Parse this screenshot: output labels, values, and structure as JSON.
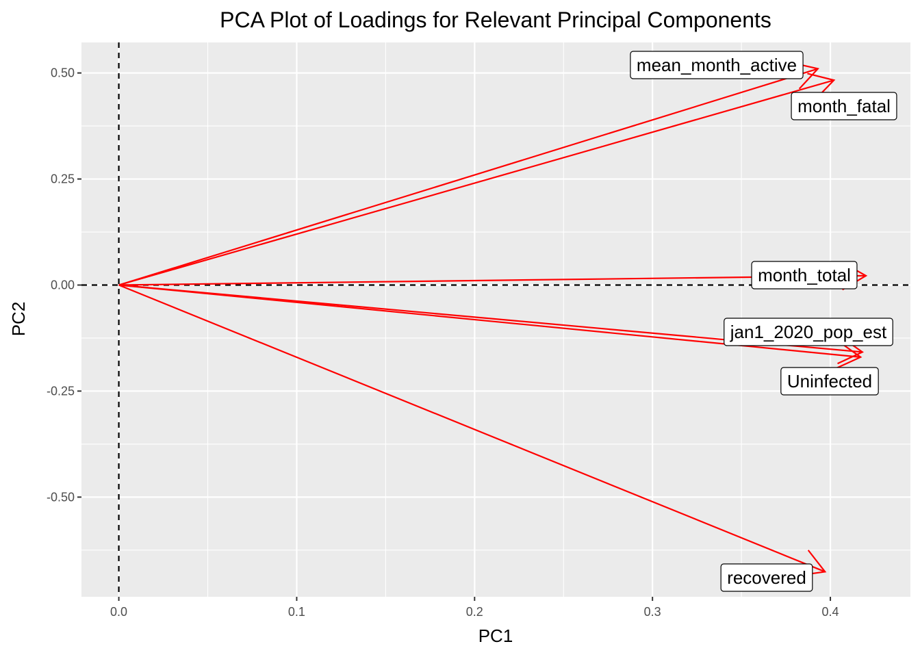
{
  "chart_data": {
    "type": "scatter",
    "title": "PCA Plot of Loadings for Relevant Principal Components",
    "xlabel": "PC1",
    "ylabel": "PC2",
    "xlim": [
      -0.021,
      0.445
    ],
    "ylim": [
      -0.735,
      0.572
    ],
    "x_ticks": [
      0.0,
      0.1,
      0.2,
      0.3,
      0.4
    ],
    "x_tick_labels": [
      "0.0",
      "0.1",
      "0.2",
      "0.3",
      "0.4"
    ],
    "y_ticks": [
      0.5,
      0.25,
      0.0,
      -0.25,
      -0.5
    ],
    "y_tick_labels": [
      "0.50",
      "0.25",
      "0.00",
      "-0.25",
      "-0.50"
    ],
    "grid": true,
    "reference_lines": {
      "x": 0,
      "y": 0,
      "style": "dashed",
      "color": "#000000"
    },
    "arrow_color": "#ff0000",
    "background_color": "#ebebeb",
    "vectors": [
      {
        "label": "mean_month_active",
        "x": 0.393,
        "y": 0.51
      },
      {
        "label": "month_fatal",
        "x": 0.402,
        "y": 0.483
      },
      {
        "label": "month_total",
        "x": 0.42,
        "y": 0.022
      },
      {
        "label": "jan1_2020_pop_est",
        "x": 0.418,
        "y": -0.158
      },
      {
        "label": "Uninfected",
        "x": 0.417,
        "y": -0.17
      },
      {
        "label": "recovered",
        "x": 0.397,
        "y": -0.676
      }
    ]
  }
}
